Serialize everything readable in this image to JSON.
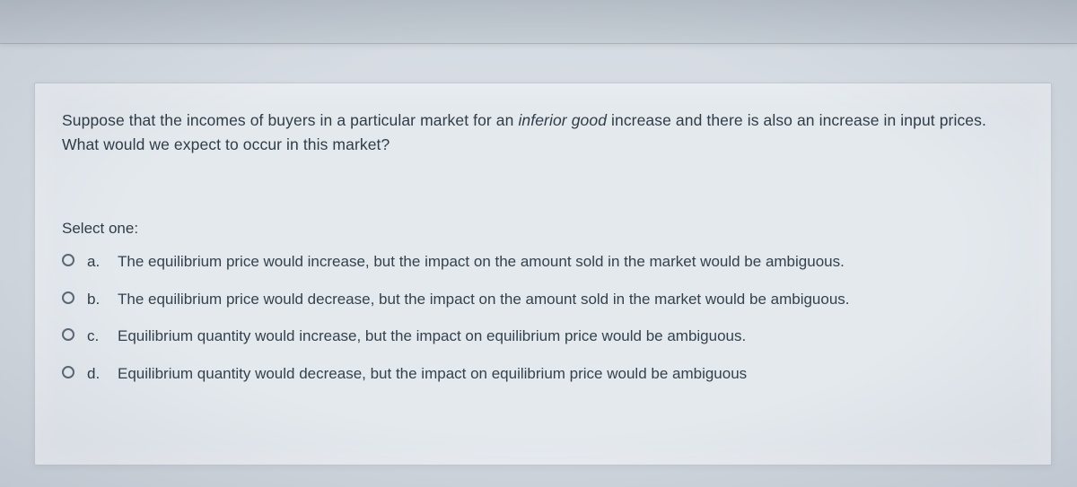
{
  "question": {
    "part1": "Suppose that the incomes of buyers in a particular market for an ",
    "italic": "inferior good",
    "part2": " increase and there is also an increase in input prices. What would we expect to occur in this market?"
  },
  "select_label": "Select one:",
  "options": [
    {
      "letter": "a.",
      "text": "The equilibrium price would increase, but the impact on the amount sold in the market would be ambiguous."
    },
    {
      "letter": "b.",
      "text": "The equilibrium price would decrease, but the impact on the amount sold in the market would be ambiguous."
    },
    {
      "letter": "c.",
      "text": "Equilibrium quantity would increase, but the impact on equilibrium price would be ambiguous."
    },
    {
      "letter": "d.",
      "text": "Equilibrium quantity would decrease, but the impact on equilibrium price would be ambiguous"
    }
  ],
  "colors": {
    "card_bg": "#e4e9ee",
    "page_bg": "#d4dae1",
    "text": "#2f3d46",
    "radio_border": "#5a6a75"
  }
}
